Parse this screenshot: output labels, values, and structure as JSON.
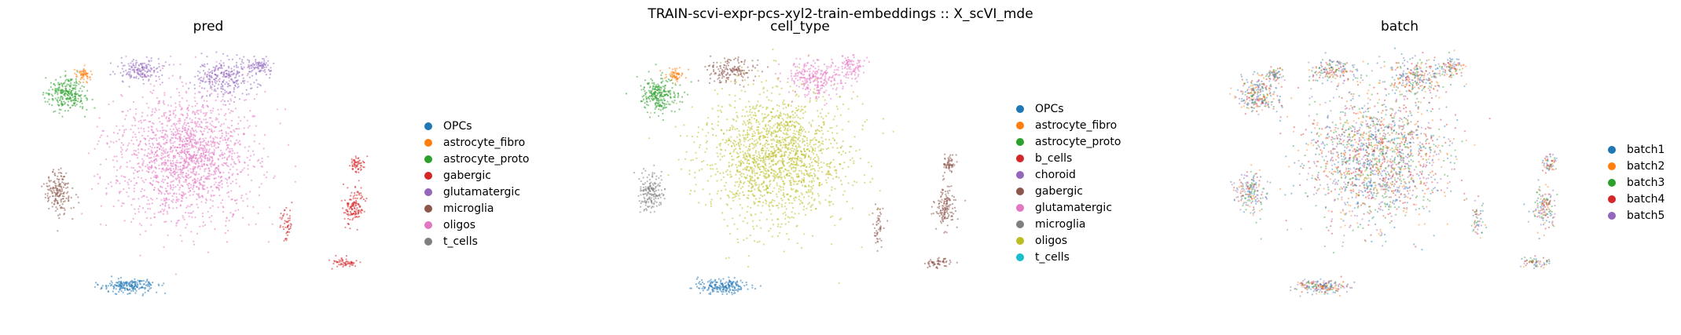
{
  "suptitle": "TRAIN-scvi-expr-pcs-xyl2-train-embeddings :: X_scVI_mde",
  "chart_data": [
    {
      "type": "scatter",
      "title": "pred",
      "xlabel": "",
      "ylabel": "",
      "grid": false,
      "legend_position": "right",
      "categories": [
        "OPCs",
        "astrocyte_fibro",
        "astrocyte_proto",
        "gabergic",
        "glutamatergic",
        "microglia",
        "oligos",
        "t_cells"
      ],
      "colors": [
        "#1f77b4",
        "#ff7f0e",
        "#2ca02c",
        "#d62728",
        "#9467bd",
        "#8c564b",
        "#e377c2",
        "#7f7f7f"
      ]
    },
    {
      "type": "scatter",
      "title": "cell_type",
      "xlabel": "",
      "ylabel": "",
      "grid": false,
      "legend_position": "right",
      "categories": [
        "OPCs",
        "astrocyte_fibro",
        "astrocyte_proto",
        "b_cells",
        "choroid",
        "gabergic",
        "glutamatergic",
        "microglia",
        "oligos",
        "t_cells"
      ],
      "colors": [
        "#1f77b4",
        "#ff7f0e",
        "#2ca02c",
        "#d62728",
        "#9467bd",
        "#8c564b",
        "#e377c2",
        "#7f7f7f",
        "#bcbd22",
        "#17becf"
      ]
    },
    {
      "type": "scatter",
      "title": "batch",
      "xlabel": "",
      "ylabel": "",
      "grid": false,
      "legend_position": "right",
      "categories": [
        "batch1",
        "batch2",
        "batch3",
        "batch4",
        "batch5"
      ],
      "colors": [
        "#1f77b4",
        "#ff7f0e",
        "#2ca02c",
        "#d62728",
        "#9467bd"
      ]
    }
  ]
}
